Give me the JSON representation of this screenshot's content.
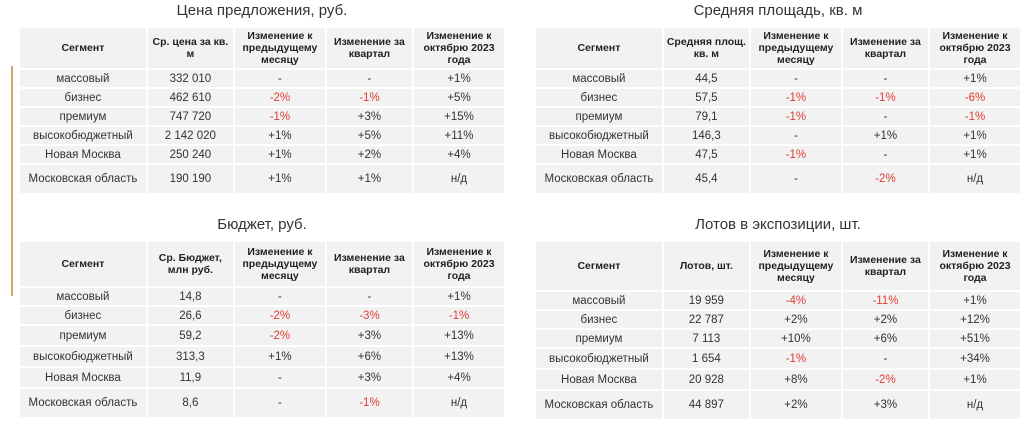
{
  "accent_color": "#d9a066",
  "negative_color": "#e03c31",
  "tables": {
    "price": {
      "title": "Цена предложения, руб.",
      "headers": [
        "Сегмент",
        "Ср. цена  за кв. м",
        "Изменение к предыдущему месяцу",
        "Изменение за квартал",
        "Изменение к октябрю 2023 года"
      ],
      "rows": [
        [
          "массовый",
          "332 010",
          "-",
          "-",
          "+1%"
        ],
        [
          "бизнес",
          "462 610",
          "-2%",
          "-1%",
          "+5%"
        ],
        [
          "премиум",
          "747 720",
          "-1%",
          "+3%",
          "+15%"
        ],
        [
          "высокобюджетный",
          "2 142 020",
          "+1%",
          "+5%",
          "+11%"
        ],
        [
          "Новая Москва",
          "250 240",
          "+1%",
          "+2%",
          "+4%"
        ],
        [
          "Московская область",
          "190 190",
          "+1%",
          "+1%",
          "н/д"
        ]
      ]
    },
    "area": {
      "title": "Средняя площадь, кв. м",
      "headers": [
        "Сегмент",
        "Средняя площ. кв. м",
        "Изменение к предыдущему месяцу",
        "Изменение за квартал",
        "Изменение к октябрю 2023 года"
      ],
      "rows": [
        [
          "массовый",
          "44,5",
          "-",
          "-",
          "+1%"
        ],
        [
          "бизнес",
          "57,5",
          "-1%",
          "-1%",
          "-6%"
        ],
        [
          "премиум",
          "79,1",
          "-1%",
          "-",
          "-1%"
        ],
        [
          "высокобюджетный",
          "146,3",
          "-",
          "+1%",
          "+1%"
        ],
        [
          "Новая Москва",
          "47,5",
          "-1%",
          "-",
          "+1%"
        ],
        [
          "Московская область",
          "45,4",
          "-",
          "-2%",
          "н/д"
        ]
      ]
    },
    "budget": {
      "title": "Бюджет, руб.",
      "headers": [
        "Сегмент",
        "Ср. Бюджет, млн руб.",
        "Изменение к предыдущему месяцу",
        "Изменение за квартал",
        "Изменение к октябрю 2023 года"
      ],
      "rows": [
        [
          "массовый",
          "14,8",
          "-",
          "-",
          "+1%"
        ],
        [
          "бизнес",
          "26,6",
          "-2%",
          "-3%",
          "-1%"
        ],
        [
          "премиум",
          "59,2",
          "-2%",
          "+3%",
          "+13%"
        ],
        [
          "высокобюджетный",
          "313,3",
          "+1%",
          "+6%",
          "+13%"
        ],
        [
          "Новая Москва",
          "11,9",
          "-",
          "+3%",
          "+4%"
        ],
        [
          "Московская область",
          "8,6",
          "-",
          "-1%",
          "н/д"
        ]
      ]
    },
    "lots": {
      "title": "Лотов в экспозиции, шт.",
      "headers": [
        "Сегмент",
        "Лотов, шт.",
        "Изменение к предыдущему месяцу",
        "Изменение за квартал",
        "Изменение к октябрю 2023 года"
      ],
      "rows": [
        [
          "массовый",
          "19 959",
          "-4%",
          "-11%",
          "+1%"
        ],
        [
          "бизнес",
          "22 787",
          "+2%",
          "+2%",
          "+12%"
        ],
        [
          "премиум",
          "7 113",
          "+10%",
          "+6%",
          "+51%"
        ],
        [
          "высокобюджетный",
          "1 654",
          "-1%",
          "-",
          "+34%"
        ],
        [
          "Новая Москва",
          "20 928",
          "+8%",
          "-2%",
          "+1%"
        ],
        [
          "Московская область",
          "44 897",
          "+2%",
          "+3%",
          "н/д"
        ]
      ]
    }
  }
}
